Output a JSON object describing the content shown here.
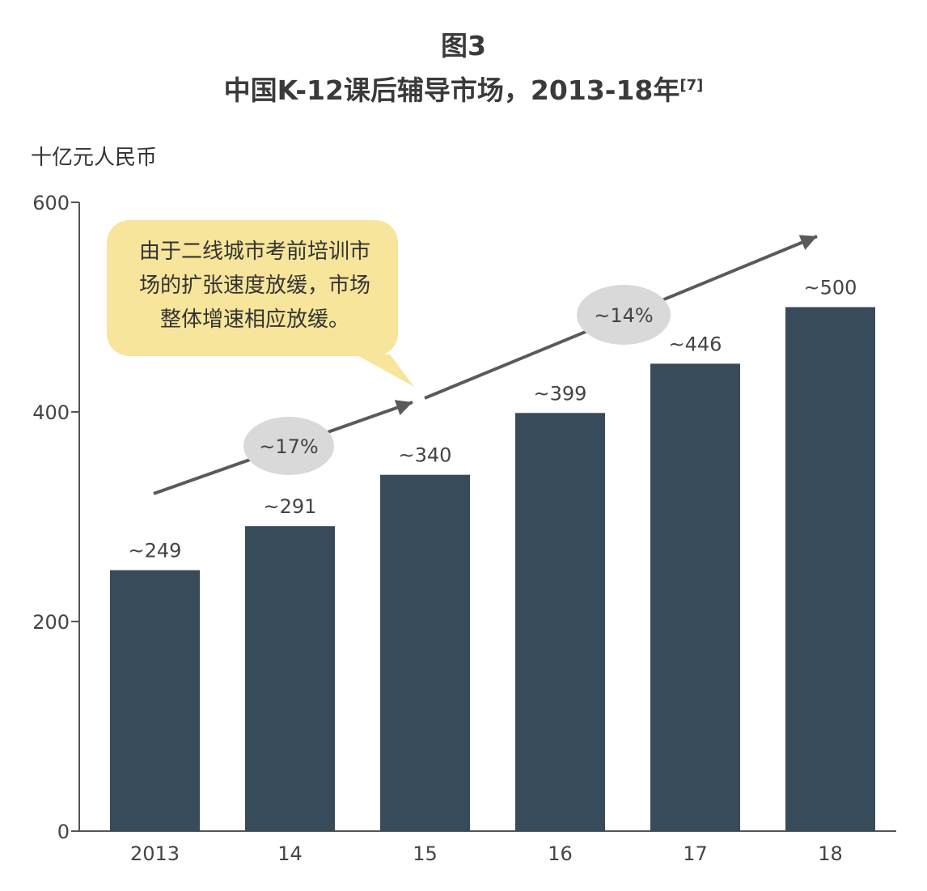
{
  "figure_number": "图3",
  "title": "中国K-12课后辅导市场，2013-18年",
  "title_ref": "[7]",
  "chart_data": {
    "type": "bar",
    "ylabel": "十亿元人民币",
    "ylim": [
      0,
      600
    ],
    "yticks": [
      0,
      200,
      400,
      600
    ],
    "categories": [
      "2013",
      "14",
      "15",
      "16",
      "17",
      "18"
    ],
    "values": [
      249,
      291,
      340,
      399,
      446,
      500
    ],
    "value_labels": [
      "~249",
      "~291",
      "~340",
      "~399",
      "~446",
      "~500"
    ],
    "bar_color": "#374b5a",
    "growth_annotations": [
      {
        "label": "~17%",
        "from": "2013",
        "to": "15"
      },
      {
        "label": "~14%",
        "from": "15",
        "to": "18"
      }
    ],
    "callout": {
      "lines": [
        "由于二线城市考前培训市",
        "场的扩张速度放缓，市场",
        "整体增速相应放缓。"
      ],
      "color": "#f6e59a"
    }
  }
}
